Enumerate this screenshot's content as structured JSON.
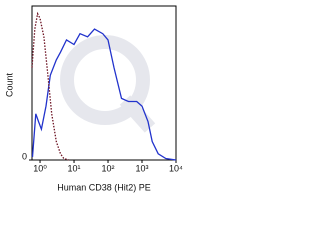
{
  "chart_data": {
    "type": "line",
    "x_label": "Human CD38 (Hit2) PE",
    "y_label": "Count",
    "xscale": "log",
    "xlim": [
      0.58,
      10000
    ],
    "xticks": [
      {
        "value": 1,
        "label": "10⁰"
      },
      {
        "value": 10,
        "label": "10¹"
      },
      {
        "value": 100,
        "label": "10²"
      },
      {
        "value": 1000,
        "label": "10³"
      },
      {
        "value": 10000,
        "label": "10⁴"
      }
    ],
    "ylim": [
      0,
      100
    ],
    "yticks": [
      0
    ],
    "series": [
      {
        "color": "#2233cc",
        "dash": false,
        "x": [
          0.6,
          0.75,
          0.9,
          1.1,
          1.5,
          2,
          3,
          4,
          6,
          10,
          15,
          25,
          40,
          70,
          100,
          150,
          250,
          400,
          700,
          1000,
          1500,
          2000,
          3000,
          5000,
          10000
        ],
        "values": [
          2,
          30,
          25,
          20,
          35,
          55,
          65,
          70,
          78,
          75,
          82,
          80,
          85,
          82,
          78,
          60,
          40,
          38,
          38,
          35,
          25,
          12,
          4,
          1,
          0
        ]
      },
      {
        "color": "#6b1020",
        "dash": true,
        "x": [
          0.58,
          0.7,
          0.85,
          1,
          1.3,
          1.7,
          2.2,
          3,
          4,
          5,
          7
        ],
        "values": [
          60,
          85,
          95,
          92,
          80,
          55,
          30,
          12,
          4,
          1,
          0
        ]
      }
    ]
  }
}
